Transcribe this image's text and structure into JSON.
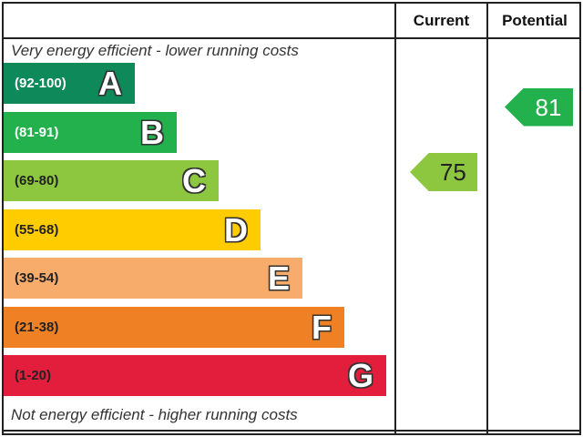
{
  "header": {
    "current_label": "Current",
    "potential_label": "Potential"
  },
  "captions": {
    "top": "Very energy efficient - lower running costs",
    "bottom": "Not energy efficient - higher running costs"
  },
  "chart_data": {
    "type": "bar",
    "categories": [
      "A",
      "B",
      "C",
      "D",
      "E",
      "F",
      "G"
    ],
    "bands": [
      {
        "letter": "A",
        "range": "(92-100)",
        "min": 92,
        "max": 100,
        "color": "#0e8a5a",
        "text_color": "#ffffff"
      },
      {
        "letter": "B",
        "range": "(81-91)",
        "min": 81,
        "max": 91,
        "color": "#22b14c",
        "text_color": "#ffffff"
      },
      {
        "letter": "C",
        "range": "(69-80)",
        "min": 69,
        "max": 80,
        "color": "#8dc63f",
        "text_color": "#222222"
      },
      {
        "letter": "D",
        "range": "(55-68)",
        "min": 55,
        "max": 68,
        "color": "#ffcc00",
        "text_color": "#222222"
      },
      {
        "letter": "E",
        "range": "(39-54)",
        "min": 39,
        "max": 54,
        "color": "#f7ac6b",
        "text_color": "#222222"
      },
      {
        "letter": "F",
        "range": "(21-38)",
        "min": 21,
        "max": 38,
        "color": "#ef8023",
        "text_color": "#222222"
      },
      {
        "letter": "G",
        "range": "(1-20)",
        "min": 1,
        "max": 20,
        "color": "#e31d3c",
        "text_color": "#222222"
      }
    ],
    "current": {
      "value": 75,
      "band": "C",
      "color": "#8dc63f"
    },
    "potential": {
      "value": 81,
      "band": "B",
      "color": "#22b14c"
    }
  }
}
